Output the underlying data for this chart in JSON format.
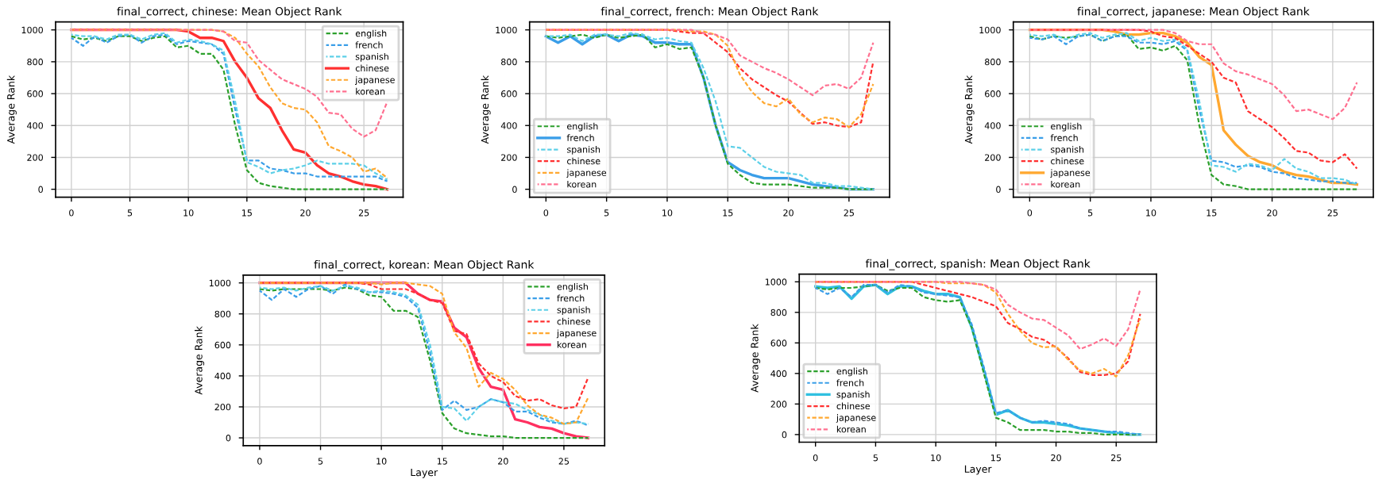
{
  "chart_data": [
    {
      "type": "line",
      "title": "final_correct, chinese: Mean Object Rank",
      "ylabel": "Average Rank",
      "x": [
        0,
        1,
        2,
        3,
        4,
        5,
        6,
        7,
        8,
        9,
        10,
        11,
        12,
        13,
        14,
        15,
        16,
        17,
        18,
        19,
        20,
        21,
        22,
        23,
        24,
        25,
        26,
        27
      ],
      "xlim": [
        -1.35,
        28.35
      ],
      "ylim": [
        -50,
        1050
      ],
      "xticks": [
        0,
        5,
        10,
        15,
        20,
        25
      ],
      "yticks": [
        0,
        200,
        400,
        600,
        800,
        1000
      ],
      "grid": true,
      "legend": "top right",
      "series": [
        {
          "name": "english",
          "color": "#2ca02c",
          "line_style": "dashed",
          "values": [
            960,
            940,
            950,
            930,
            960,
            960,
            930,
            950,
            960,
            890,
            900,
            850,
            850,
            750,
            400,
            120,
            40,
            20,
            10,
            0,
            0,
            0,
            0,
            0,
            0,
            0,
            0,
            0
          ]
        },
        {
          "name": "french",
          "color": "#3a9ee8",
          "line_style": "dashed",
          "values": [
            950,
            900,
            960,
            920,
            960,
            970,
            920,
            960,
            970,
            910,
            930,
            920,
            910,
            850,
            500,
            180,
            180,
            130,
            120,
            100,
            100,
            80,
            80,
            80,
            80,
            80,
            80,
            50
          ]
        },
        {
          "name": "spanish",
          "color": "#5dd0e8",
          "line_style": "dashed",
          "values": [
            970,
            960,
            960,
            940,
            970,
            970,
            940,
            970,
            980,
            920,
            940,
            930,
            910,
            870,
            550,
            170,
            140,
            100,
            120,
            130,
            150,
            180,
            160,
            160,
            160,
            150,
            100,
            60
          ]
        },
        {
          "name": "chinese",
          "color": "#ff3030",
          "line_style": "solid",
          "values": [
            1000,
            1000,
            1000,
            1000,
            1000,
            1000,
            1000,
            1000,
            1000,
            1000,
            990,
            950,
            950,
            930,
            800,
            700,
            570,
            510,
            370,
            250,
            230,
            150,
            100,
            80,
            50,
            30,
            20,
            0
          ]
        },
        {
          "name": "japanese",
          "color": "#ffa830",
          "line_style": "dashed",
          "values": [
            1000,
            1000,
            1000,
            1000,
            1000,
            1000,
            1000,
            1000,
            1000,
            1000,
            1000,
            1000,
            1000,
            990,
            950,
            850,
            770,
            640,
            540,
            510,
            500,
            420,
            270,
            240,
            200,
            110,
            130,
            70
          ]
        },
        {
          "name": "korean",
          "color": "#ff7090",
          "line_style": "dashed",
          "values": [
            1000,
            1000,
            1000,
            1000,
            1000,
            1000,
            1000,
            1000,
            1000,
            1000,
            1000,
            1000,
            1000,
            990,
            930,
            920,
            810,
            750,
            690,
            660,
            630,
            580,
            480,
            470,
            380,
            330,
            370,
            550
          ]
        }
      ]
    },
    {
      "type": "line",
      "title": "final_correct, french: Mean Object Rank",
      "ylabel": "Average Rank",
      "x": [
        0,
        1,
        2,
        3,
        4,
        5,
        6,
        7,
        8,
        9,
        10,
        11,
        12,
        13,
        14,
        15,
        16,
        17,
        18,
        19,
        20,
        21,
        22,
        23,
        24,
        25,
        26,
        27
      ],
      "xlim": [
        -1.35,
        28.35
      ],
      "ylim": [
        -50,
        1050
      ],
      "xticks": [
        0,
        5,
        10,
        15,
        20,
        25
      ],
      "yticks": [
        0,
        200,
        400,
        600,
        800,
        1000
      ],
      "grid": true,
      "legend": "bottom left",
      "series": [
        {
          "name": "english",
          "color": "#2ca02c",
          "line_style": "dashed",
          "values": [
            960,
            950,
            960,
            970,
            950,
            970,
            950,
            960,
            970,
            890,
            910,
            880,
            890,
            700,
            400,
            160,
            90,
            40,
            30,
            30,
            30,
            20,
            10,
            10,
            10,
            0,
            0,
            0
          ]
        },
        {
          "name": "french",
          "color": "#3a9ee8",
          "line_style": "solid",
          "values": [
            960,
            920,
            960,
            910,
            960,
            970,
            930,
            970,
            960,
            920,
            920,
            910,
            910,
            700,
            400,
            170,
            120,
            90,
            70,
            70,
            70,
            50,
            30,
            20,
            10,
            0,
            0,
            0
          ]
        },
        {
          "name": "spanish",
          "color": "#5dd0e8",
          "line_style": "dashed",
          "values": [
            960,
            960,
            970,
            930,
            970,
            970,
            960,
            980,
            970,
            940,
            950,
            930,
            920,
            760,
            550,
            270,
            260,
            200,
            140,
            110,
            100,
            90,
            40,
            40,
            20,
            20,
            10,
            0
          ]
        },
        {
          "name": "chinese",
          "color": "#ff3030",
          "line_style": "dashed",
          "values": [
            1000,
            1000,
            1000,
            1000,
            1000,
            1000,
            1000,
            1000,
            1000,
            1000,
            1000,
            990,
            980,
            980,
            920,
            860,
            760,
            690,
            640,
            590,
            550,
            480,
            410,
            420,
            400,
            390,
            420,
            800
          ]
        },
        {
          "name": "japanese",
          "color": "#ffa830",
          "line_style": "dashed",
          "values": [
            1000,
            1000,
            1000,
            1000,
            1000,
            1000,
            1000,
            1000,
            1000,
            1000,
            1000,
            1000,
            990,
            990,
            970,
            900,
            720,
            610,
            540,
            520,
            570,
            470,
            420,
            450,
            440,
            390,
            470,
            660
          ]
        },
        {
          "name": "korean",
          "color": "#ff7090",
          "line_style": "dashed",
          "values": [
            1000,
            1000,
            1000,
            1000,
            1000,
            1000,
            1000,
            1000,
            1000,
            1000,
            1000,
            1000,
            1000,
            980,
            970,
            940,
            840,
            800,
            760,
            730,
            690,
            640,
            590,
            650,
            660,
            630,
            700,
            920
          ]
        }
      ]
    },
    {
      "type": "line",
      "title": "final_correct, japanese: Mean Object Rank",
      "ylabel": "Average Rank",
      "x": [
        0,
        1,
        2,
        3,
        4,
        5,
        6,
        7,
        8,
        9,
        10,
        11,
        12,
        13,
        14,
        15,
        16,
        17,
        18,
        19,
        20,
        21,
        22,
        23,
        24,
        25,
        26,
        27
      ],
      "xlim": [
        -1.35,
        28.35
      ],
      "ylim": [
        -50,
        1050
      ],
      "xticks": [
        0,
        5,
        10,
        15,
        20,
        25
      ],
      "yticks": [
        0,
        200,
        400,
        600,
        800,
        1000
      ],
      "grid": true,
      "legend": "bottom left",
      "series": [
        {
          "name": "english",
          "color": "#2ca02c",
          "line_style": "dashed",
          "values": [
            960,
            940,
            960,
            950,
            960,
            970,
            930,
            960,
            970,
            880,
            890,
            870,
            900,
            810,
            400,
            90,
            30,
            20,
            0,
            0,
            0,
            0,
            0,
            0,
            0,
            0,
            0,
            0
          ]
        },
        {
          "name": "french",
          "color": "#3a9ee8",
          "line_style": "dashed",
          "values": [
            950,
            940,
            960,
            910,
            960,
            970,
            930,
            960,
            960,
            920,
            920,
            910,
            930,
            870,
            500,
            180,
            170,
            140,
            150,
            140,
            110,
            100,
            70,
            60,
            50,
            50,
            40,
            40
          ]
        },
        {
          "name": "spanish",
          "color": "#5dd0e8",
          "line_style": "dashed",
          "values": [
            970,
            960,
            970,
            940,
            970,
            980,
            950,
            970,
            980,
            930,
            950,
            930,
            940,
            880,
            550,
            150,
            140,
            110,
            160,
            150,
            120,
            190,
            130,
            110,
            70,
            70,
            60,
            30
          ]
        },
        {
          "name": "chinese",
          "color": "#ff3030",
          "line_style": "dashed",
          "values": [
            1000,
            1000,
            1000,
            1000,
            1000,
            1000,
            1000,
            1000,
            1000,
            1000,
            990,
            960,
            950,
            900,
            850,
            800,
            700,
            670,
            490,
            440,
            390,
            320,
            240,
            230,
            180,
            170,
            220,
            130
          ]
        },
        {
          "name": "japanese",
          "color": "#ffa830",
          "line_style": "solid",
          "values": [
            1000,
            1000,
            1000,
            1000,
            1000,
            1000,
            1000,
            990,
            970,
            970,
            980,
            980,
            960,
            920,
            830,
            780,
            370,
            280,
            210,
            170,
            150,
            110,
            90,
            80,
            60,
            40,
            40,
            30
          ]
        },
        {
          "name": "korean",
          "color": "#ff7090",
          "line_style": "dashed",
          "values": [
            1000,
            1000,
            1000,
            1000,
            1000,
            1000,
            1000,
            1000,
            1000,
            1000,
            1000,
            1000,
            980,
            930,
            910,
            910,
            790,
            740,
            720,
            690,
            660,
            590,
            490,
            500,
            470,
            440,
            510,
            670
          ]
        }
      ]
    },
    {
      "type": "line",
      "title": "final_correct, korean: Mean Object Rank",
      "xlabel": "Layer",
      "ylabel": "Average Rank",
      "x": [
        0,
        1,
        2,
        3,
        4,
        5,
        6,
        7,
        8,
        9,
        10,
        11,
        12,
        13,
        14,
        15,
        16,
        17,
        18,
        19,
        20,
        21,
        22,
        23,
        24,
        25,
        26,
        27
      ],
      "xlim": [
        -1.35,
        28.35
      ],
      "ylim": [
        -50,
        1050
      ],
      "xticks": [
        0,
        5,
        10,
        15,
        20,
        25
      ],
      "yticks": [
        0,
        200,
        400,
        600,
        800,
        1000
      ],
      "grid": true,
      "legend": "top right",
      "series": [
        {
          "name": "english",
          "color": "#2ca02c",
          "line_style": "dashed",
          "values": [
            960,
            950,
            960,
            960,
            960,
            960,
            950,
            970,
            960,
            920,
            910,
            820,
            820,
            780,
            500,
            160,
            60,
            30,
            20,
            10,
            10,
            0,
            0,
            0,
            0,
            0,
            0,
            0
          ]
        },
        {
          "name": "french",
          "color": "#3a9ee8",
          "line_style": "dashed",
          "values": [
            950,
            890,
            960,
            910,
            960,
            980,
            930,
            990,
            960,
            940,
            940,
            930,
            910,
            840,
            550,
            180,
            240,
            180,
            200,
            250,
            230,
            170,
            170,
            130,
            100,
            90,
            110,
            80
          ]
        },
        {
          "name": "spanish",
          "color": "#5dd0e8",
          "line_style": "dashed",
          "values": [
            970,
            960,
            970,
            950,
            970,
            980,
            950,
            980,
            970,
            940,
            950,
            940,
            920,
            860,
            600,
            200,
            190,
            110,
            200,
            250,
            230,
            220,
            180,
            150,
            110,
            90,
            100,
            90
          ]
        },
        {
          "name": "chinese",
          "color": "#ff3030",
          "line_style": "dashed",
          "values": [
            1000,
            1000,
            1000,
            1000,
            1000,
            1000,
            1000,
            1000,
            1000,
            990,
            960,
            960,
            960,
            930,
            890,
            870,
            690,
            670,
            480,
            400,
            360,
            270,
            240,
            250,
            210,
            190,
            200,
            390
          ]
        },
        {
          "name": "japanese",
          "color": "#ffa830",
          "line_style": "dashed",
          "values": [
            1000,
            1000,
            1000,
            1000,
            1000,
            1000,
            1000,
            1000,
            1000,
            1000,
            990,
            1000,
            1000,
            990,
            980,
            930,
            680,
            580,
            330,
            420,
            380,
            310,
            210,
            150,
            130,
            90,
            100,
            260
          ]
        },
        {
          "name": "korean",
          "color": "#ff3060",
          "line_style": "solid",
          "values": [
            1000,
            1000,
            1000,
            1000,
            1000,
            1000,
            1000,
            1000,
            1000,
            1000,
            1000,
            1000,
            1000,
            930,
            890,
            880,
            710,
            650,
            450,
            330,
            310,
            120,
            100,
            70,
            60,
            30,
            10,
            0
          ]
        }
      ]
    },
    {
      "type": "line",
      "title": "final_correct, spanish: Mean Object Rank",
      "xlabel": "Layer",
      "ylabel": "Average Rank",
      "x": [
        0,
        1,
        2,
        3,
        4,
        5,
        6,
        7,
        8,
        9,
        10,
        11,
        12,
        13,
        14,
        15,
        16,
        17,
        18,
        19,
        20,
        21,
        22,
        23,
        24,
        25,
        26,
        27
      ],
      "xlim": [
        -1.35,
        28.35
      ],
      "ylim": [
        -50,
        1050
      ],
      "xticks": [
        0,
        5,
        10,
        15,
        20,
        25
      ],
      "yticks": [
        0,
        200,
        400,
        600,
        800,
        1000
      ],
      "grid": true,
      "legend": "bottom left",
      "series": [
        {
          "name": "english",
          "color": "#2ca02c",
          "line_style": "dashed",
          "values": [
            960,
            950,
            960,
            960,
            970,
            980,
            940,
            960,
            960,
            900,
            880,
            870,
            880,
            700,
            400,
            110,
            80,
            30,
            30,
            30,
            20,
            20,
            10,
            10,
            0,
            0,
            0,
            0
          ]
        },
        {
          "name": "french",
          "color": "#3a9ee8",
          "line_style": "dashed",
          "values": [
            960,
            920,
            960,
            900,
            980,
            980,
            930,
            980,
            970,
            930,
            920,
            910,
            900,
            720,
            440,
            140,
            160,
            110,
            80,
            90,
            80,
            70,
            40,
            30,
            20,
            20,
            10,
            0
          ]
        },
        {
          "name": "spanish",
          "color": "#30c0e0",
          "line_style": "solid",
          "values": [
            970,
            960,
            970,
            890,
            970,
            980,
            920,
            970,
            970,
            940,
            920,
            920,
            900,
            700,
            420,
            130,
            160,
            110,
            80,
            80,
            70,
            60,
            40,
            30,
            20,
            10,
            0,
            0
          ]
        },
        {
          "name": "chinese",
          "color": "#ff3030",
          "line_style": "dashed",
          "values": [
            1000,
            1000,
            1000,
            1000,
            1000,
            1000,
            1000,
            1000,
            1000,
            980,
            960,
            940,
            920,
            900,
            870,
            840,
            730,
            690,
            640,
            620,
            570,
            500,
            410,
            390,
            390,
            400,
            480,
            790
          ]
        },
        {
          "name": "japanese",
          "color": "#ffa830",
          "line_style": "dashed",
          "values": [
            1000,
            1000,
            1000,
            1000,
            1000,
            1000,
            1000,
            1000,
            1000,
            1000,
            1000,
            990,
            990,
            990,
            980,
            930,
            790,
            680,
            600,
            570,
            580,
            490,
            420,
            400,
            430,
            380,
            520,
            760
          ]
        },
        {
          "name": "korean",
          "color": "#ff7090",
          "line_style": "dashed",
          "values": [
            1000,
            1000,
            1000,
            1000,
            1000,
            1000,
            1000,
            1000,
            1000,
            1000,
            1000,
            1000,
            1000,
            990,
            980,
            950,
            850,
            800,
            760,
            750,
            700,
            650,
            560,
            590,
            630,
            580,
            690,
            950
          ]
        }
      ]
    }
  ]
}
